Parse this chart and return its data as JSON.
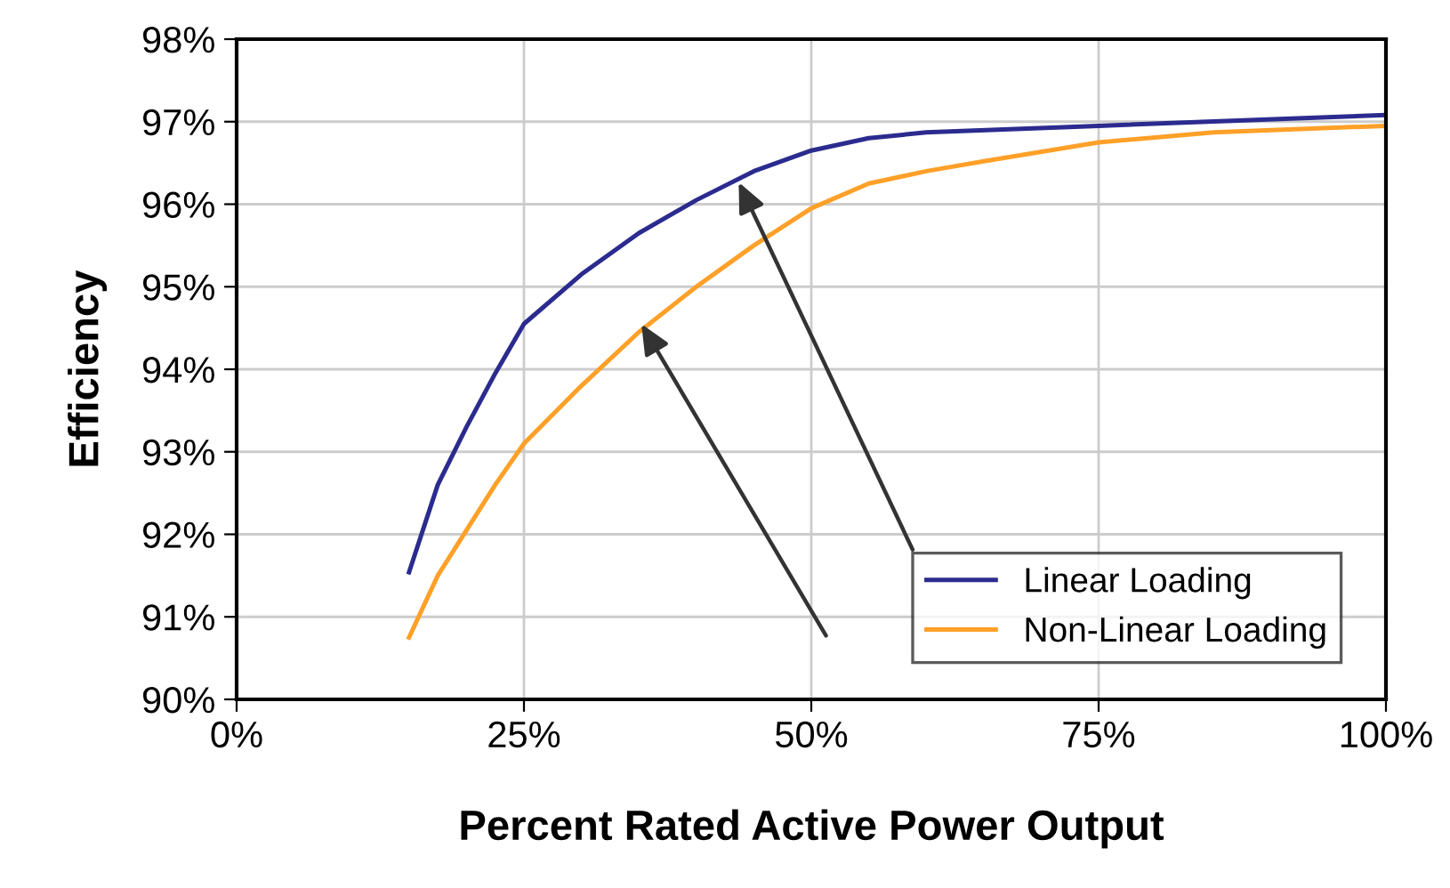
{
  "chart_data": {
    "type": "line",
    "xlabel": "Percent Rated Active Power Output",
    "ylabel": "Efficiency",
    "series": [
      {
        "name": "Linear Loading",
        "color": "#2b2b8f",
        "x": [
          15,
          17.5,
          20,
          22.5,
          25,
          30,
          35,
          40,
          45,
          50,
          55,
          60,
          75,
          100
        ],
        "values": [
          91.54,
          92.6,
          93.3,
          93.95,
          94.55,
          95.15,
          95.65,
          96.05,
          96.4,
          96.65,
          96.8,
          96.87,
          96.95,
          97.08
        ]
      },
      {
        "name": "Non-Linear Loading",
        "color": "#ffa028",
        "x": [
          15,
          17.5,
          20,
          22.5,
          25,
          30,
          35,
          40,
          45,
          50,
          55,
          60,
          65,
          75,
          85,
          100
        ],
        "values": [
          90.75,
          91.5,
          92.05,
          92.6,
          93.1,
          93.8,
          94.45,
          95.0,
          95.5,
          95.95,
          96.25,
          96.4,
          96.52,
          96.75,
          96.87,
          96.95
        ]
      }
    ],
    "xlim": [
      0,
      100
    ],
    "xticks": [
      {
        "value": 0,
        "label": "0%"
      },
      {
        "value": 25,
        "label": "25%"
      },
      {
        "value": 50,
        "label": "50%"
      },
      {
        "value": 75,
        "label": "75%"
      },
      {
        "value": 100,
        "label": "100%"
      }
    ],
    "ylim": [
      90,
      98
    ],
    "yticks": [
      {
        "value": 90,
        "label": "90%"
      },
      {
        "value": 91,
        "label": "91%"
      },
      {
        "value": 92,
        "label": "92%"
      },
      {
        "value": 93,
        "label": "93%"
      },
      {
        "value": 94,
        "label": "94%"
      },
      {
        "value": 95,
        "label": "95%"
      },
      {
        "value": 96,
        "label": "96%"
      },
      {
        "value": 97,
        "label": "97%"
      },
      {
        "value": 98,
        "label": "98%"
      }
    ],
    "grid": true,
    "legend": "bottom right",
    "marker": "none",
    "line_style": "solid"
  }
}
